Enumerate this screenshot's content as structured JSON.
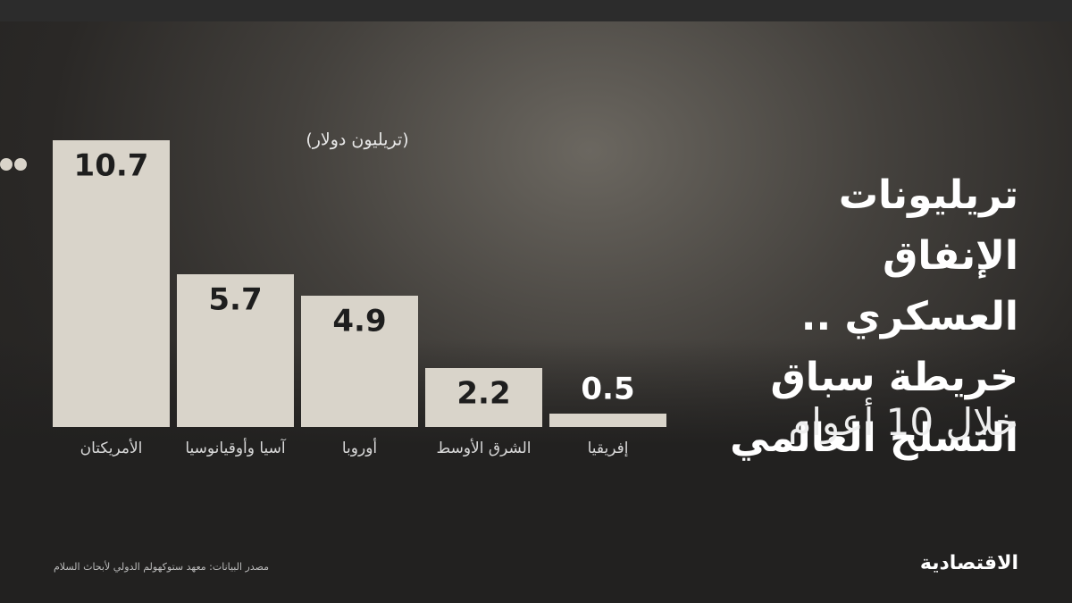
{
  "chart_data": {
    "type": "bar",
    "title": "تريليونات الإنفاق العسكري .. خريطة سباق التسلح العالمي",
    "subtitle": "خلال 10 أعوام",
    "unit_label": "(تريليون دولار)",
    "categories": [
      "الأمريكتان",
      "آسيا وأوقيانوسيا",
      "أوروبا",
      "الشرق الأوسط",
      "إفريقيا"
    ],
    "values": [
      10.7,
      5.7,
      4.9,
      2.2,
      0.5
    ],
    "color": "#d9d4ca"
  },
  "footer": {
    "source": "مصدر البيانات: معهد ستوكهولم الدولي لأبحاث السلام",
    "logo": "الاقتصادية"
  }
}
